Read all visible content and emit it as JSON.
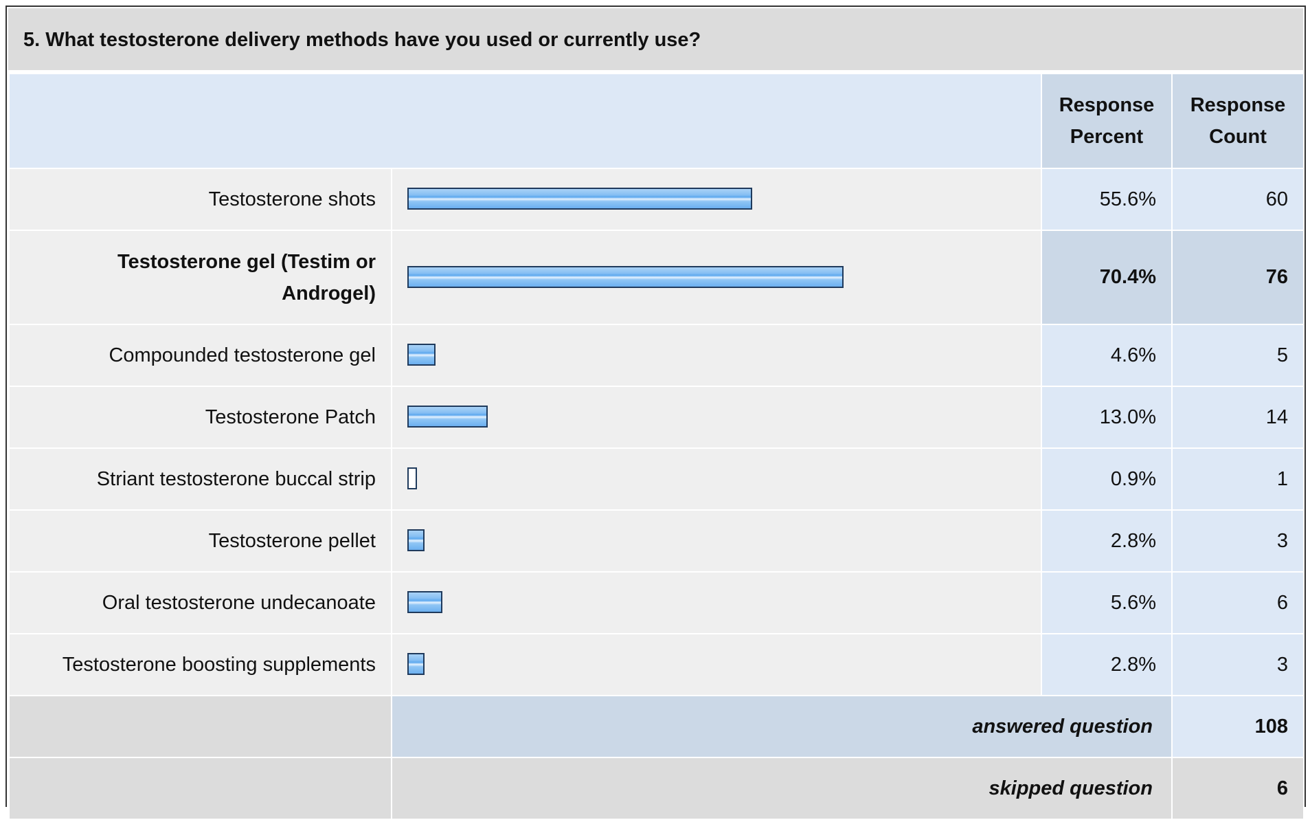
{
  "question": "5. What testosterone delivery methods have you used or currently use?",
  "columns": {
    "percent": "Response Percent",
    "percent_line1": "Response",
    "percent_line2": "Percent",
    "count_line1": "Response",
    "count_line2": "Count"
  },
  "chart_data": {
    "type": "bar",
    "orientation": "horizontal",
    "categories": [
      "Testosterone shots",
      "Testosterone gel (Testim or Androgel)",
      "Compounded testosterone gel",
      "Testosterone Patch",
      "Striant testosterone buccal strip",
      "Testosterone pellet",
      "Oral testosterone undecanoate",
      "Testosterone boosting supplements"
    ],
    "values": [
      55.6,
      70.4,
      4.6,
      13.0,
      0.9,
      2.8,
      5.6,
      2.8
    ],
    "percent_labels": [
      "55.6%",
      "70.4%",
      "4.6%",
      "13.0%",
      "0.9%",
      "2.8%",
      "5.6%",
      "2.8%"
    ],
    "counts": [
      "60",
      "76",
      "5",
      "14",
      "1",
      "3",
      "6",
      "3"
    ],
    "highlighted_index": 1,
    "xlim": [
      0,
      100
    ]
  },
  "summary": {
    "answered_label": "answered question",
    "answered_value": "108",
    "skipped_label": "skipped question",
    "skipped_value": "6"
  },
  "colors": {
    "bar_fill": "#87bff3",
    "bar_border": "#1f3a5c",
    "header_bg": "#dcdcdc",
    "column_bg": "#dde8f6",
    "highlight_bg": "#cbd8e7"
  }
}
